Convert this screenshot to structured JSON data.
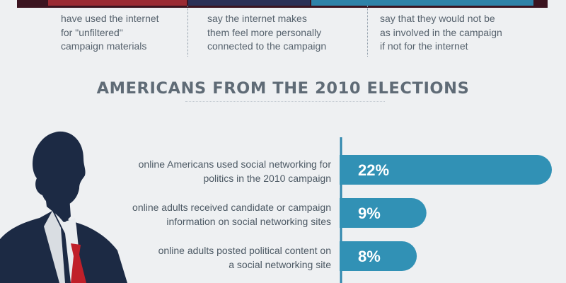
{
  "top_stats": [
    {
      "text": "have used the internet\nfor \"unfiltered\"\ncampaign materials"
    },
    {
      "text": "say the internet makes\nthem feel more personally\nconnected to the campaign"
    },
    {
      "text": "say that they would not be\nas involved in the campaign\nif not for the internet"
    }
  ],
  "heading": "AMERICANS FROM THE 2010 ELECTIONS",
  "colors": {
    "background": "#eef0f2",
    "bar": "#3191b5",
    "axis": "#2e86ad",
    "text": "#4c5964",
    "heading": "#5f6b76",
    "silhouette": "#1c2a44",
    "tie": "#c0202a"
  },
  "icons": {
    "figure": "businessman-silhouette"
  },
  "chart_data": {
    "type": "bar",
    "orientation": "horizontal",
    "unit": "%",
    "xlim": [
      0,
      22
    ],
    "categories": [
      [
        "online Americans used social networking for",
        "politics in the 2010 campaign"
      ],
      [
        "online adults received candidate or campaign",
        "information on social networking sites"
      ],
      [
        "online adults posted political content on",
        "a social networking site"
      ]
    ],
    "values": [
      22,
      9,
      8
    ],
    "value_labels": [
      "22%",
      "9%",
      "8%"
    ]
  }
}
